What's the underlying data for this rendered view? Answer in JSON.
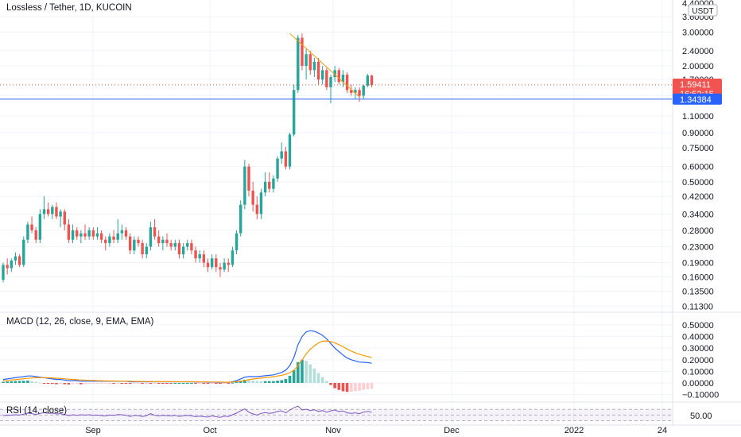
{
  "header": {
    "title": "Lossless / Tether, 1D, KUCOIN",
    "currency_badge": "USDT"
  },
  "price_axis": {
    "ticks": [
      "4.40000",
      "3.60000",
      "3.00000",
      "2.40000",
      "2.00000",
      "1.70000",
      "1.40000",
      "1.10000",
      "0.90000",
      "0.75000",
      "0.60000",
      "0.50000",
      "0.42000",
      "0.34000",
      "0.28000",
      "0.23000",
      "0.19000",
      "0.16000",
      "0.13500",
      "0.11300"
    ],
    "last_price_label": "1.59411",
    "countdown_label": "16:52:15",
    "hline_label": "1.34384",
    "last_price_color": "#f05350",
    "hline_color": "#2962ff"
  },
  "macd_axis": {
    "ticks": [
      "0.50000",
      "0.40000",
      "0.30000",
      "0.20000",
      "0.10000",
      "0.00000",
      "−0.10000"
    ]
  },
  "rsi_axis": {
    "ticks": [
      "50.00"
    ]
  },
  "x_axis": {
    "ticks": [
      "Sep",
      "Oct",
      "Nov",
      "Dec",
      "2022",
      "24"
    ]
  },
  "colors": {
    "up": "#26a69a",
    "down": "#ef5350",
    "macd_line": "#2962ff",
    "signal_line": "#ff9800",
    "rsi_line": "#7e57c2",
    "trendline": "#ff9800",
    "grid": "#f0f3fa"
  },
  "chart_data": [
    {
      "type": "candlestick",
      "title": "Lossless / Tether, 1D, KUCOIN",
      "scale": "log",
      "ylim": [
        0.105,
        4.4
      ],
      "x_ticks": [
        "Sep",
        "Oct",
        "Nov",
        "Dec",
        "2022",
        "24"
      ],
      "last_price": 1.59411,
      "horizontal_line": 1.34384,
      "trendline": {
        "from": [
          "Oct 19",
          2.95
        ],
        "to": [
          "Nov 7",
          1.38
        ]
      },
      "candles": [
        [
          0.155,
          0.19,
          0.15,
          0.185
        ],
        [
          0.185,
          0.2,
          0.165,
          0.178
        ],
        [
          0.178,
          0.2,
          0.17,
          0.195
        ],
        [
          0.195,
          0.215,
          0.185,
          0.205
        ],
        [
          0.205,
          0.21,
          0.18,
          0.185
        ],
        [
          0.185,
          0.26,
          0.18,
          0.25
        ],
        [
          0.25,
          0.31,
          0.24,
          0.3
        ],
        [
          0.3,
          0.33,
          0.27,
          0.28
        ],
        [
          0.28,
          0.29,
          0.24,
          0.25
        ],
        [
          0.25,
          0.36,
          0.24,
          0.34
        ],
        [
          0.34,
          0.42,
          0.32,
          0.36
        ],
        [
          0.36,
          0.39,
          0.33,
          0.34
        ],
        [
          0.34,
          0.38,
          0.32,
          0.37
        ],
        [
          0.37,
          0.39,
          0.32,
          0.33
        ],
        [
          0.33,
          0.36,
          0.29,
          0.35
        ],
        [
          0.35,
          0.36,
          0.28,
          0.3
        ],
        [
          0.3,
          0.32,
          0.24,
          0.25
        ],
        [
          0.25,
          0.3,
          0.24,
          0.28
        ],
        [
          0.28,
          0.29,
          0.25,
          0.26
        ],
        [
          0.26,
          0.28,
          0.24,
          0.27
        ],
        [
          0.27,
          0.3,
          0.25,
          0.26
        ],
        [
          0.26,
          0.29,
          0.25,
          0.28
        ],
        [
          0.28,
          0.29,
          0.25,
          0.26
        ],
        [
          0.26,
          0.29,
          0.25,
          0.27
        ],
        [
          0.27,
          0.28,
          0.24,
          0.25
        ],
        [
          0.25,
          0.26,
          0.22,
          0.24
        ],
        [
          0.24,
          0.27,
          0.23,
          0.26
        ],
        [
          0.26,
          0.28,
          0.24,
          0.25
        ],
        [
          0.25,
          0.32,
          0.24,
          0.27
        ],
        [
          0.27,
          0.3,
          0.25,
          0.28
        ],
        [
          0.28,
          0.29,
          0.25,
          0.26
        ],
        [
          0.26,
          0.27,
          0.21,
          0.22
        ],
        [
          0.22,
          0.26,
          0.21,
          0.25
        ],
        [
          0.25,
          0.26,
          0.23,
          0.24
        ],
        [
          0.24,
          0.25,
          0.2,
          0.21
        ],
        [
          0.21,
          0.24,
          0.2,
          0.23
        ],
        [
          0.23,
          0.31,
          0.22,
          0.29
        ],
        [
          0.29,
          0.32,
          0.25,
          0.26
        ],
        [
          0.26,
          0.28,
          0.23,
          0.24
        ],
        [
          0.24,
          0.26,
          0.22,
          0.25
        ],
        [
          0.25,
          0.27,
          0.23,
          0.24
        ],
        [
          0.24,
          0.25,
          0.22,
          0.23
        ],
        [
          0.23,
          0.25,
          0.22,
          0.24
        ],
        [
          0.24,
          0.25,
          0.2,
          0.21
        ],
        [
          0.21,
          0.24,
          0.2,
          0.23
        ],
        [
          0.23,
          0.25,
          0.22,
          0.24
        ],
        [
          0.24,
          0.25,
          0.21,
          0.22
        ],
        [
          0.22,
          0.23,
          0.19,
          0.2
        ],
        [
          0.2,
          0.22,
          0.19,
          0.21
        ],
        [
          0.21,
          0.22,
          0.18,
          0.19
        ],
        [
          0.19,
          0.2,
          0.17,
          0.18
        ],
        [
          0.18,
          0.21,
          0.175,
          0.2
        ],
        [
          0.2,
          0.21,
          0.17,
          0.18
        ],
        [
          0.18,
          0.19,
          0.16,
          0.175
        ],
        [
          0.175,
          0.2,
          0.17,
          0.19
        ],
        [
          0.19,
          0.2,
          0.17,
          0.185
        ],
        [
          0.185,
          0.23,
          0.18,
          0.22
        ],
        [
          0.22,
          0.28,
          0.21,
          0.27
        ],
        [
          0.27,
          0.4,
          0.26,
          0.38
        ],
        [
          0.38,
          0.65,
          0.36,
          0.6
        ],
        [
          0.6,
          0.62,
          0.42,
          0.45
        ],
        [
          0.45,
          0.5,
          0.35,
          0.38
        ],
        [
          0.38,
          0.42,
          0.32,
          0.34
        ],
        [
          0.34,
          0.46,
          0.32,
          0.44
        ],
        [
          0.44,
          0.56,
          0.42,
          0.5
        ],
        [
          0.5,
          0.56,
          0.44,
          0.46
        ],
        [
          0.46,
          0.54,
          0.44,
          0.52
        ],
        [
          0.52,
          0.68,
          0.5,
          0.66
        ],
        [
          0.66,
          0.8,
          0.62,
          0.72
        ],
        [
          0.72,
          0.76,
          0.58,
          0.6
        ],
        [
          0.6,
          0.9,
          0.58,
          0.88
        ],
        [
          0.88,
          1.6,
          0.86,
          1.5
        ],
        [
          1.5,
          2.9,
          1.45,
          2.8
        ],
        [
          2.8,
          2.95,
          1.9,
          2.0
        ],
        [
          2.0,
          2.45,
          1.7,
          2.3
        ],
        [
          2.3,
          2.4,
          1.8,
          1.9
        ],
        [
          1.9,
          2.2,
          1.75,
          2.1
        ],
        [
          2.1,
          2.2,
          1.6,
          1.7
        ],
        [
          1.7,
          2.0,
          1.6,
          1.9
        ],
        [
          1.9,
          1.95,
          1.5,
          1.55
        ],
        [
          1.55,
          1.8,
          1.28,
          1.75
        ],
        [
          1.75,
          2.0,
          1.65,
          1.9
        ],
        [
          1.9,
          1.95,
          1.6,
          1.65
        ],
        [
          1.65,
          1.9,
          1.55,
          1.8
        ],
        [
          1.8,
          1.85,
          1.45,
          1.5
        ],
        [
          1.5,
          1.6,
          1.4,
          1.45
        ],
        [
          1.45,
          1.55,
          1.35,
          1.5
        ],
        [
          1.5,
          1.55,
          1.3,
          1.4
        ],
        [
          1.4,
          1.6,
          1.35,
          1.58
        ],
        [
          1.58,
          1.82,
          1.55,
          1.78
        ],
        [
          1.78,
          1.8,
          1.55,
          1.594
        ]
      ]
    },
    {
      "type": "line",
      "title": "MACD (12, 26, close, 9, EMA, EMA)",
      "ylim": [
        -0.13,
        0.52
      ],
      "series": [
        {
          "values": [
            0.03,
            0.035,
            0.04,
            0.045,
            0.05,
            0.055,
            0.06,
            0.06,
            0.055,
            0.05,
            0.045,
            0.04,
            0.035,
            0.03,
            0.03,
            0.025,
            0.02,
            0.02,
            0.02,
            0.015,
            0.015,
            0.015,
            0.015,
            0.015,
            0.015,
            0.015,
            0.015,
            0.015,
            0.015,
            0.015,
            0.015,
            0.01,
            0.01,
            0.01,
            0.01,
            0.01,
            0.01,
            0.01,
            0.01,
            0.01,
            0.01,
            0.01,
            0.01,
            0.01,
            0.01,
            0.01,
            0.01,
            0.008,
            0.008,
            0.008,
            0.007,
            0.007,
            0.006,
            0.006,
            0.006,
            0.006,
            0.01,
            0.02,
            0.035,
            0.05,
            0.055,
            0.055,
            0.055,
            0.058,
            0.062,
            0.066,
            0.07,
            0.08,
            0.09,
            0.11,
            0.15,
            0.22,
            0.33,
            0.4,
            0.44,
            0.45,
            0.445,
            0.43,
            0.41,
            0.38,
            0.34,
            0.3,
            0.27,
            0.24,
            0.215,
            0.2,
            0.19,
            0.18,
            0.178,
            0.175,
            0.17
          ]
        },
        {
          "values": [
            0.02,
            0.022,
            0.025,
            0.028,
            0.032,
            0.036,
            0.04,
            0.043,
            0.045,
            0.046,
            0.046,
            0.045,
            0.043,
            0.041,
            0.039,
            0.036,
            0.033,
            0.03,
            0.028,
            0.026,
            0.024,
            0.022,
            0.021,
            0.02,
            0.019,
            0.018,
            0.017,
            0.017,
            0.016,
            0.016,
            0.016,
            0.015,
            0.014,
            0.013,
            0.013,
            0.012,
            0.012,
            0.011,
            0.011,
            0.011,
            0.011,
            0.011,
            0.01,
            0.01,
            0.01,
            0.01,
            0.01,
            0.01,
            0.009,
            0.009,
            0.009,
            0.008,
            0.008,
            0.008,
            0.007,
            0.007,
            0.008,
            0.01,
            0.015,
            0.022,
            0.028,
            0.034,
            0.038,
            0.042,
            0.046,
            0.05,
            0.054,
            0.06,
            0.066,
            0.075,
            0.088,
            0.11,
            0.15,
            0.2,
            0.25,
            0.29,
            0.32,
            0.345,
            0.36,
            0.362,
            0.357,
            0.345,
            0.33,
            0.312,
            0.292,
            0.275,
            0.26,
            0.247,
            0.237,
            0.228,
            0.22
          ]
        }
      ],
      "histogram": [
        0.01,
        0.013,
        0.015,
        0.017,
        0.018,
        0.019,
        0.02,
        0.017,
        0.01,
        0.004,
        -0.001,
        -0.005,
        -0.008,
        -0.011,
        -0.009,
        -0.011,
        -0.013,
        -0.01,
        -0.008,
        -0.011,
        -0.009,
        -0.007,
        -0.006,
        -0.005,
        -0.004,
        -0.003,
        -0.002,
        -0.002,
        -0.001,
        -0.001,
        -0.001,
        -0.005,
        -0.004,
        -0.003,
        -0.003,
        -0.002,
        -0.002,
        -0.001,
        -0.001,
        -0.001,
        -0.001,
        -0.001,
        0.0,
        0.0,
        0.0,
        0.0,
        0.0,
        -0.002,
        -0.001,
        -0.001,
        -0.002,
        -0.001,
        -0.002,
        -0.002,
        -0.001,
        -0.001,
        0.002,
        0.01,
        0.02,
        0.028,
        0.027,
        0.021,
        0.017,
        0.016,
        0.016,
        0.016,
        0.016,
        0.02,
        0.024,
        0.035,
        0.062,
        0.11,
        0.18,
        0.2,
        0.19,
        0.16,
        0.125,
        0.085,
        0.05,
        0.018,
        -0.017,
        -0.045,
        -0.06,
        -0.072,
        -0.077,
        -0.075,
        -0.07,
        -0.067,
        -0.059,
        -0.053,
        -0.05
      ]
    },
    {
      "type": "line",
      "title": "RSI (14, close)",
      "ylim": [
        20,
        85
      ],
      "series": [
        {
          "values": [
            48,
            49,
            50,
            51,
            50,
            53,
            57,
            55,
            52,
            56,
            59,
            56,
            57,
            54,
            55,
            52,
            48,
            51,
            49,
            51,
            50,
            51,
            49,
            50,
            48,
            47,
            50,
            49,
            52,
            51,
            49,
            45,
            49,
            48,
            45,
            48,
            55,
            49,
            47,
            49,
            48,
            47,
            49,
            45,
            48,
            49,
            47,
            44,
            46,
            44,
            43,
            47,
            44,
            42,
            46,
            45,
            51,
            57,
            65,
            72,
            60,
            54,
            50,
            56,
            59,
            56,
            58,
            63,
            65,
            58,
            68,
            76,
            82,
            68,
            71,
            66,
            69,
            63,
            66,
            60,
            65,
            68,
            62,
            65,
            58,
            56,
            58,
            55,
            60,
            63,
            60
          ]
        }
      ]
    }
  ]
}
